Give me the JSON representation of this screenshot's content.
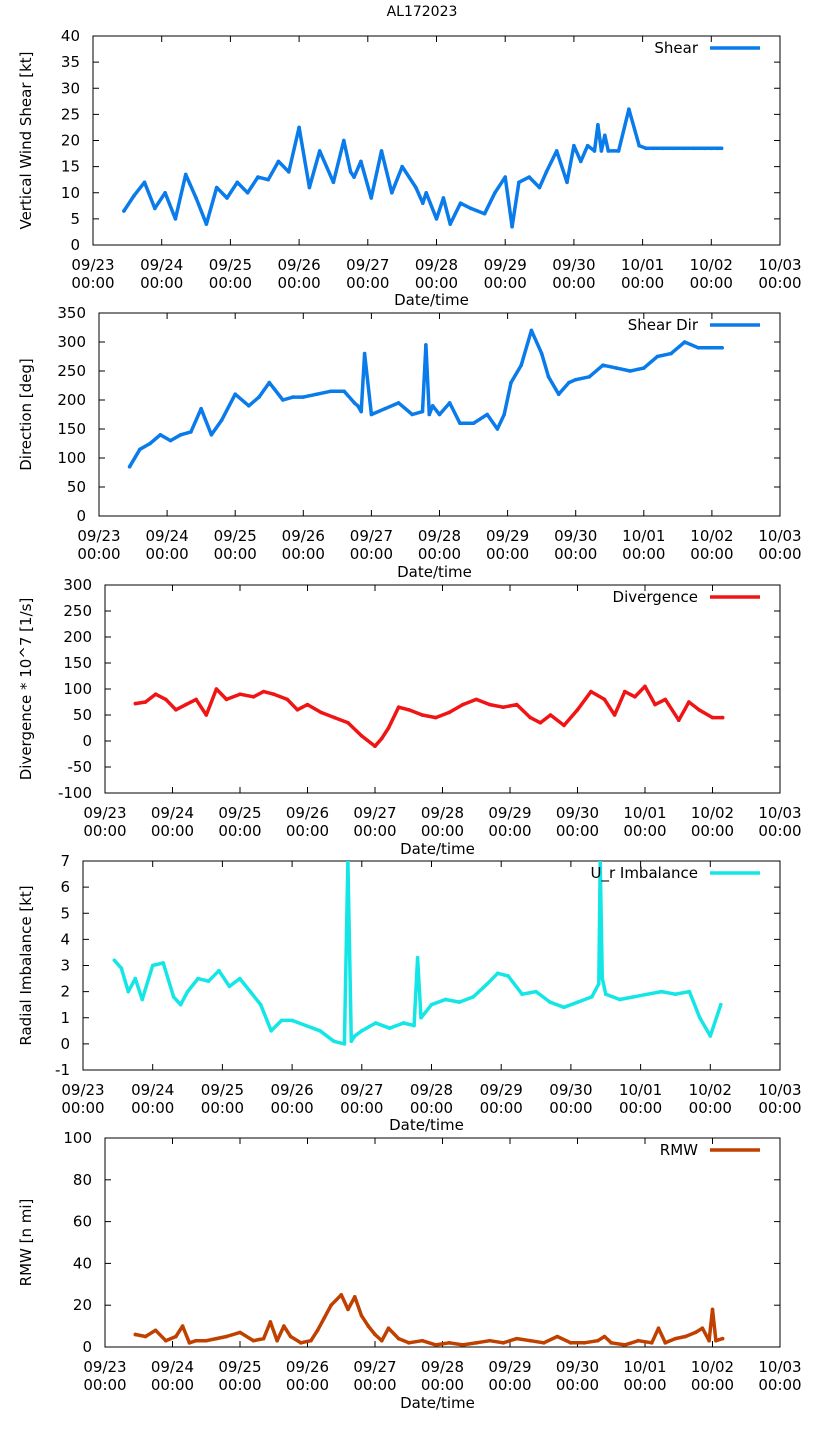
{
  "page_title": "AL172023",
  "chart_data": [
    {
      "type": "line",
      "id": "shear",
      "title": "AL172023",
      "xlabel": "Date/time",
      "ylabel": "Vertical Wind Shear [kt]",
      "ylim": [
        0,
        40
      ],
      "yticks": [
        0,
        5,
        10,
        15,
        20,
        25,
        30,
        35,
        40
      ],
      "ytick_labels": [
        "0",
        "5",
        "10",
        "15",
        "20",
        "25",
        "30",
        "35",
        "40"
      ],
      "xlim": [
        0,
        10
      ],
      "xticks": [
        {
          "top": "09/23",
          "bottom": "00:00"
        },
        {
          "top": "09/24",
          "bottom": "00:00"
        },
        {
          "top": "09/25",
          "bottom": "00:00"
        },
        {
          "top": "09/26",
          "bottom": "00:00"
        },
        {
          "top": "09/27",
          "bottom": "00:00"
        },
        {
          "top": "09/28",
          "bottom": "00:00"
        },
        {
          "top": "09/29",
          "bottom": "00:00"
        },
        {
          "top": "09/30",
          "bottom": "00:00"
        },
        {
          "top": "10/01",
          "bottom": "00:00"
        },
        {
          "top": "10/02",
          "bottom": "00:00"
        },
        {
          "top": "10/03",
          "bottom": "00:00"
        }
      ],
      "legend": "top-right",
      "series": [
        {
          "name": "Shear",
          "color": "#0a7bea",
          "x": [
            0.45,
            0.6,
            0.75,
            0.9,
            1.05,
            1.2,
            1.35,
            1.5,
            1.65,
            1.8,
            1.95,
            2.1,
            2.25,
            2.4,
            2.55,
            2.7,
            2.85,
            3.0,
            3.15,
            3.3,
            3.5,
            3.65,
            3.75,
            3.8,
            3.9,
            4.05,
            4.2,
            4.35,
            4.5,
            4.7,
            4.8,
            4.85,
            5.0,
            5.1,
            5.2,
            5.35,
            5.5,
            5.7,
            5.85,
            6.0,
            6.1,
            6.2,
            6.35,
            6.5,
            6.6,
            6.75,
            6.9,
            7.0,
            7.1,
            7.2,
            7.3,
            7.35,
            7.4,
            7.45,
            7.5,
            7.65,
            7.8,
            7.95,
            8.05,
            8.15,
            8.3,
            8.45,
            8.6,
            8.75,
            8.9,
            9.0,
            9.1,
            9.15
          ],
          "values": [
            6.5,
            9.5,
            12,
            7,
            10,
            5,
            13.5,
            9,
            4,
            11,
            9,
            12,
            10,
            13,
            12.5,
            16,
            14,
            22.5,
            11,
            18,
            12,
            20,
            14,
            13,
            16,
            9,
            18,
            10,
            15,
            11,
            8,
            10,
            5,
            9,
            4,
            8,
            7,
            6,
            10,
            13,
            3.5,
            12,
            13,
            11,
            14,
            18,
            12,
            19,
            16,
            19,
            18,
            23,
            18,
            21,
            18,
            18,
            26,
            19,
            18.5,
            18.5,
            18.5,
            18.5,
            18.5,
            18.5,
            18.5,
            18.5,
            18.5,
            18.5
          ]
        }
      ]
    },
    {
      "type": "line",
      "id": "shear-dir",
      "title": "",
      "xlabel": "Date/time",
      "ylabel": "Direction [deg]",
      "ylim": [
        0,
        350
      ],
      "yticks": [
        0,
        50,
        100,
        150,
        200,
        250,
        300,
        350
      ],
      "ytick_labels": [
        "0",
        "50",
        "100",
        "150",
        "200",
        "250",
        "300",
        "350"
      ],
      "xlim": [
        0,
        10
      ],
      "xticks": [
        {
          "top": "09/23",
          "bottom": "00:00"
        },
        {
          "top": "09/24",
          "bottom": "00:00"
        },
        {
          "top": "09/25",
          "bottom": "00:00"
        },
        {
          "top": "09/26",
          "bottom": "00:00"
        },
        {
          "top": "09/27",
          "bottom": "00:00"
        },
        {
          "top": "09/28",
          "bottom": "00:00"
        },
        {
          "top": "09/29",
          "bottom": "00:00"
        },
        {
          "top": "09/30",
          "bottom": "00:00"
        },
        {
          "top": "10/01",
          "bottom": "00:00"
        },
        {
          "top": "10/02",
          "bottom": "00:00"
        },
        {
          "top": "10/03",
          "bottom": "00:00"
        }
      ],
      "legend": "top-right",
      "series": [
        {
          "name": "Shear Dir",
          "color": "#0a7bea",
          "x": [
            0.45,
            0.6,
            0.75,
            0.9,
            1.05,
            1.2,
            1.35,
            1.5,
            1.65,
            1.8,
            2.0,
            2.2,
            2.35,
            2.5,
            2.7,
            2.85,
            3.0,
            3.2,
            3.4,
            3.6,
            3.75,
            3.8,
            3.85,
            3.9,
            4.0,
            4.2,
            4.4,
            4.6,
            4.75,
            4.8,
            4.85,
            4.9,
            5.0,
            5.15,
            5.3,
            5.5,
            5.7,
            5.85,
            5.95,
            6.05,
            6.2,
            6.35,
            6.5,
            6.6,
            6.75,
            6.9,
            7.0,
            7.2,
            7.4,
            7.6,
            7.8,
            8.0,
            8.2,
            8.4,
            8.6,
            8.8,
            9.0,
            9.15
          ],
          "values": [
            85,
            115,
            125,
            140,
            130,
            140,
            145,
            185,
            140,
            165,
            210,
            190,
            205,
            230,
            200,
            205,
            205,
            210,
            215,
            215,
            195,
            190,
            180,
            280,
            175,
            185,
            195,
            175,
            180,
            295,
            175,
            190,
            175,
            195,
            160,
            160,
            175,
            150,
            175,
            230,
            260,
            320,
            280,
            240,
            210,
            230,
            235,
            240,
            260,
            255,
            250,
            255,
            275,
            280,
            300,
            290,
            290,
            290
          ]
        }
      ]
    },
    {
      "type": "line",
      "id": "divergence",
      "title": "",
      "xlabel": "Date/time",
      "ylabel": "Divergence * 10^7 [1/s]",
      "ylim": [
        -100,
        300
      ],
      "yticks": [
        -100,
        -50,
        0,
        50,
        100,
        150,
        200,
        250,
        300
      ],
      "ytick_labels": [
        "-100",
        "-50",
        "0",
        "50",
        "100",
        "150",
        "200",
        "250",
        "300"
      ],
      "xlim": [
        0,
        10
      ],
      "xticks": [
        {
          "top": "09/23",
          "bottom": "00:00"
        },
        {
          "top": "09/24",
          "bottom": "00:00"
        },
        {
          "top": "09/25",
          "bottom": "00:00"
        },
        {
          "top": "09/26",
          "bottom": "00:00"
        },
        {
          "top": "09/27",
          "bottom": "00:00"
        },
        {
          "top": "09/28",
          "bottom": "00:00"
        },
        {
          "top": "09/29",
          "bottom": "00:00"
        },
        {
          "top": "09/30",
          "bottom": "00:00"
        },
        {
          "top": "10/01",
          "bottom": "00:00"
        },
        {
          "top": "10/02",
          "bottom": "00:00"
        },
        {
          "top": "10/03",
          "bottom": "00:00"
        }
      ],
      "legend": "top-right",
      "series": [
        {
          "name": "Divergence",
          "color": "#f01414",
          "x": [
            0.45,
            0.6,
            0.75,
            0.9,
            1.05,
            1.2,
            1.35,
            1.5,
            1.65,
            1.8,
            2.0,
            2.2,
            2.35,
            2.5,
            2.7,
            2.85,
            3.0,
            3.2,
            3.4,
            3.6,
            3.8,
            4.0,
            4.1,
            4.2,
            4.35,
            4.5,
            4.7,
            4.9,
            5.1,
            5.3,
            5.5,
            5.7,
            5.9,
            6.1,
            6.3,
            6.45,
            6.6,
            6.8,
            7.0,
            7.2,
            7.4,
            7.55,
            7.7,
            7.85,
            8.0,
            8.15,
            8.3,
            8.5,
            8.65,
            8.8,
            9.0,
            9.15
          ],
          "values": [
            72,
            75,
            90,
            80,
            60,
            70,
            80,
            50,
            100,
            80,
            90,
            85,
            95,
            90,
            80,
            60,
            70,
            55,
            45,
            35,
            10,
            -10,
            5,
            25,
            65,
            60,
            50,
            45,
            55,
            70,
            80,
            70,
            65,
            70,
            45,
            35,
            50,
            30,
            60,
            95,
            80,
            50,
            95,
            85,
            105,
            70,
            80,
            40,
            75,
            60,
            45,
            45
          ]
        }
      ]
    },
    {
      "type": "line",
      "id": "radial-imbalance",
      "title": "",
      "xlabel": "Date/time",
      "ylabel": "Radial Imbalance [kt]",
      "ylim": [
        -1,
        7
      ],
      "yticks": [
        -1,
        0,
        1,
        2,
        3,
        4,
        5,
        6,
        7
      ],
      "ytick_labels": [
        "-1",
        "0",
        "1",
        "2",
        "3",
        "4",
        "5",
        "6",
        "7"
      ],
      "xlim": [
        0,
        10
      ],
      "xticks": [
        {
          "top": "09/23",
          "bottom": "00:00"
        },
        {
          "top": "09/24",
          "bottom": "00:00"
        },
        {
          "top": "09/25",
          "bottom": "00:00"
        },
        {
          "top": "09/26",
          "bottom": "00:00"
        },
        {
          "top": "09/27",
          "bottom": "00:00"
        },
        {
          "top": "09/28",
          "bottom": "00:00"
        },
        {
          "top": "09/29",
          "bottom": "00:00"
        },
        {
          "top": "09/30",
          "bottom": "00:00"
        },
        {
          "top": "10/01",
          "bottom": "00:00"
        },
        {
          "top": "10/02",
          "bottom": "00:00"
        },
        {
          "top": "10/03",
          "bottom": "00:00"
        }
      ],
      "legend": "top-right",
      "series": [
        {
          "name": "U_r Imbalance",
          "color": "#14e6e6",
          "x": [
            0.45,
            0.55,
            0.65,
            0.75,
            0.85,
            1.0,
            1.15,
            1.3,
            1.4,
            1.5,
            1.65,
            1.8,
            1.95,
            2.1,
            2.25,
            2.4,
            2.55,
            2.7,
            2.85,
            3.0,
            3.2,
            3.4,
            3.6,
            3.75,
            3.8,
            3.85,
            3.9,
            4.0,
            4.2,
            4.4,
            4.6,
            4.75,
            4.8,
            4.85,
            5.0,
            5.2,
            5.4,
            5.6,
            5.8,
            5.95,
            6.1,
            6.3,
            6.5,
            6.7,
            6.9,
            7.1,
            7.3,
            7.4,
            7.42,
            7.45,
            7.5,
            7.7,
            7.9,
            8.1,
            8.3,
            8.5,
            8.7,
            8.85,
            9.0,
            9.15
          ],
          "values": [
            3.2,
            2.9,
            2.0,
            2.5,
            1.7,
            3.0,
            3.1,
            1.8,
            1.5,
            2.0,
            2.5,
            2.4,
            2.8,
            2.2,
            2.5,
            2.0,
            1.5,
            0.5,
            0.9,
            0.9,
            0.7,
            0.5,
            0.1,
            0.0,
            7.0,
            0.1,
            0.3,
            0.5,
            0.8,
            0.6,
            0.8,
            0.7,
            3.3,
            1.0,
            1.5,
            1.7,
            1.6,
            1.8,
            2.3,
            2.7,
            2.6,
            1.9,
            2.0,
            1.6,
            1.4,
            1.6,
            1.8,
            2.3,
            7.0,
            2.5,
            1.9,
            1.7,
            1.8,
            1.9,
            2.0,
            1.9,
            2.0,
            1.0,
            0.3,
            1.5
          ]
        }
      ]
    },
    {
      "type": "line",
      "id": "rmw",
      "title": "",
      "xlabel": "Date/time",
      "ylabel": "RMW [n mi]",
      "ylim": [
        0,
        100
      ],
      "yticks": [
        0,
        20,
        40,
        60,
        80,
        100
      ],
      "ytick_labels": [
        "0",
        "20",
        "40",
        "60",
        "80",
        "100"
      ],
      "xlim": [
        0,
        10
      ],
      "xticks": [
        {
          "top": "09/23",
          "bottom": "00:00"
        },
        {
          "top": "09/24",
          "bottom": "00:00"
        },
        {
          "top": "09/25",
          "bottom": "00:00"
        },
        {
          "top": "09/26",
          "bottom": "00:00"
        },
        {
          "top": "09/27",
          "bottom": "00:00"
        },
        {
          "top": "09/28",
          "bottom": "00:00"
        },
        {
          "top": "09/29",
          "bottom": "00:00"
        },
        {
          "top": "09/30",
          "bottom": "00:00"
        },
        {
          "top": "10/01",
          "bottom": "00:00"
        },
        {
          "top": "10/02",
          "bottom": "00:00"
        },
        {
          "top": "10/03",
          "bottom": "00:00"
        }
      ],
      "legend": "top-right",
      "series": [
        {
          "name": "RMW",
          "color": "#c04000",
          "x": [
            0.45,
            0.6,
            0.75,
            0.9,
            1.05,
            1.15,
            1.25,
            1.35,
            1.5,
            1.65,
            1.8,
            2.0,
            2.2,
            2.35,
            2.45,
            2.55,
            2.65,
            2.75,
            2.9,
            3.05,
            3.15,
            3.25,
            3.35,
            3.5,
            3.6,
            3.7,
            3.8,
            3.9,
            4.0,
            4.1,
            4.2,
            4.35,
            4.5,
            4.7,
            4.9,
            5.1,
            5.3,
            5.5,
            5.7,
            5.9,
            6.1,
            6.3,
            6.5,
            6.7,
            6.9,
            7.1,
            7.3,
            7.4,
            7.5,
            7.7,
            7.9,
            8.1,
            8.2,
            8.3,
            8.45,
            8.6,
            8.75,
            8.85,
            8.95,
            9.0,
            9.05,
            9.15
          ],
          "values": [
            6,
            5,
            8,
            3,
            5,
            10,
            2,
            3,
            3,
            4,
            5,
            7,
            3,
            4,
            12,
            3,
            10,
            5,
            2,
            3,
            8,
            14,
            20,
            25,
            18,
            24,
            15,
            10,
            6,
            3,
            9,
            4,
            2,
            3,
            1,
            2,
            1,
            2,
            3,
            2,
            4,
            3,
            2,
            5,
            2,
            2,
            3,
            5,
            2,
            1,
            3,
            2,
            9,
            2,
            4,
            5,
            7,
            9,
            3,
            18,
            3,
            4
          ]
        }
      ]
    }
  ]
}
